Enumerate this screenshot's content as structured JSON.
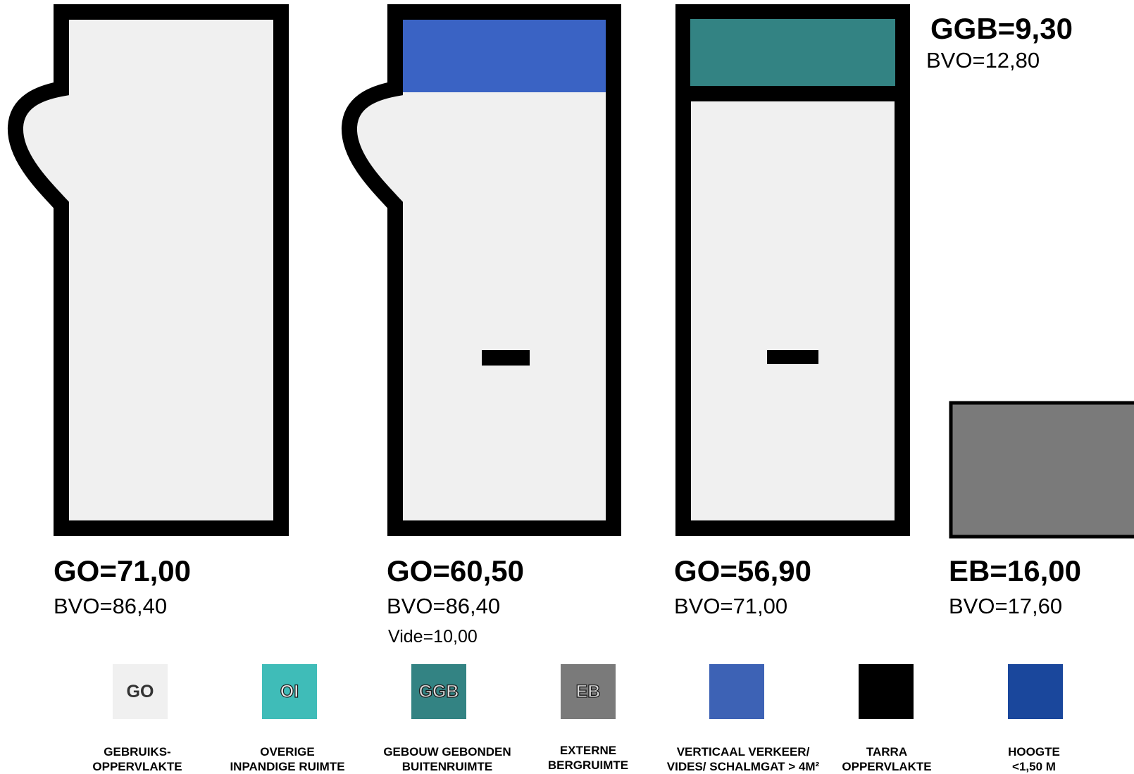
{
  "colors": {
    "go": "#f0f0f0",
    "oi": "#3fbcb8",
    "ggb": "#338383",
    "eb": "#7a7a7a",
    "verkeer": "#3d62b5",
    "tarra": "#000000",
    "hoogte": "#1a479c",
    "outline": "#000000"
  },
  "shapes": [
    {
      "icon": "floor-plan-bulge-icon",
      "go_label": "GO=71,00",
      "bvo_label": "BVO=86,40"
    },
    {
      "icon": "floor-plan-bulge-stairwell-icon",
      "go_label": "GO=60,50",
      "bvo_label": "BVO=86,40",
      "vide_label": "Vide=10,00"
    },
    {
      "icon": "floor-plan-balcony-icon",
      "go_label": "GO=56,90",
      "bvo_label": "BVO=71,00",
      "ggb_label": "GGB=9,30",
      "ggb_bvo_label": "BVO=12,80"
    },
    {
      "icon": "storage-box-icon",
      "eb_label": "EB=16,00",
      "bvo_label": "BVO=17,60"
    }
  ],
  "legend": [
    {
      "code": "GO",
      "line1": "GEBRUIKS-",
      "line2": "OPPERVLAKTE",
      "color_key": "go"
    },
    {
      "code": "OI",
      "line1": "OVERIGE",
      "line2": "INPANDIGE RUIMTE",
      "color_key": "oi"
    },
    {
      "code": "GGB",
      "line1": "GEBOUW GEBONDEN",
      "line2": "BUITENRUIMTE",
      "color_key": "ggb"
    },
    {
      "code": "EB",
      "line1": "EXTERNE",
      "line2": "BERGRUIMTE",
      "color_key": "eb"
    },
    {
      "code": "",
      "line1": "VERTICAAL VERKEER/",
      "line2": "VIDES/ SCHALMGAT > 4M²",
      "color_key": "verkeer"
    },
    {
      "code": "",
      "line1": "TARRA",
      "line2": "OPPERVLAKTE",
      "color_key": "tarra"
    },
    {
      "code": "",
      "line1": "HOOGTE",
      "line2": "<1,50 M",
      "color_key": "hoogte"
    }
  ]
}
